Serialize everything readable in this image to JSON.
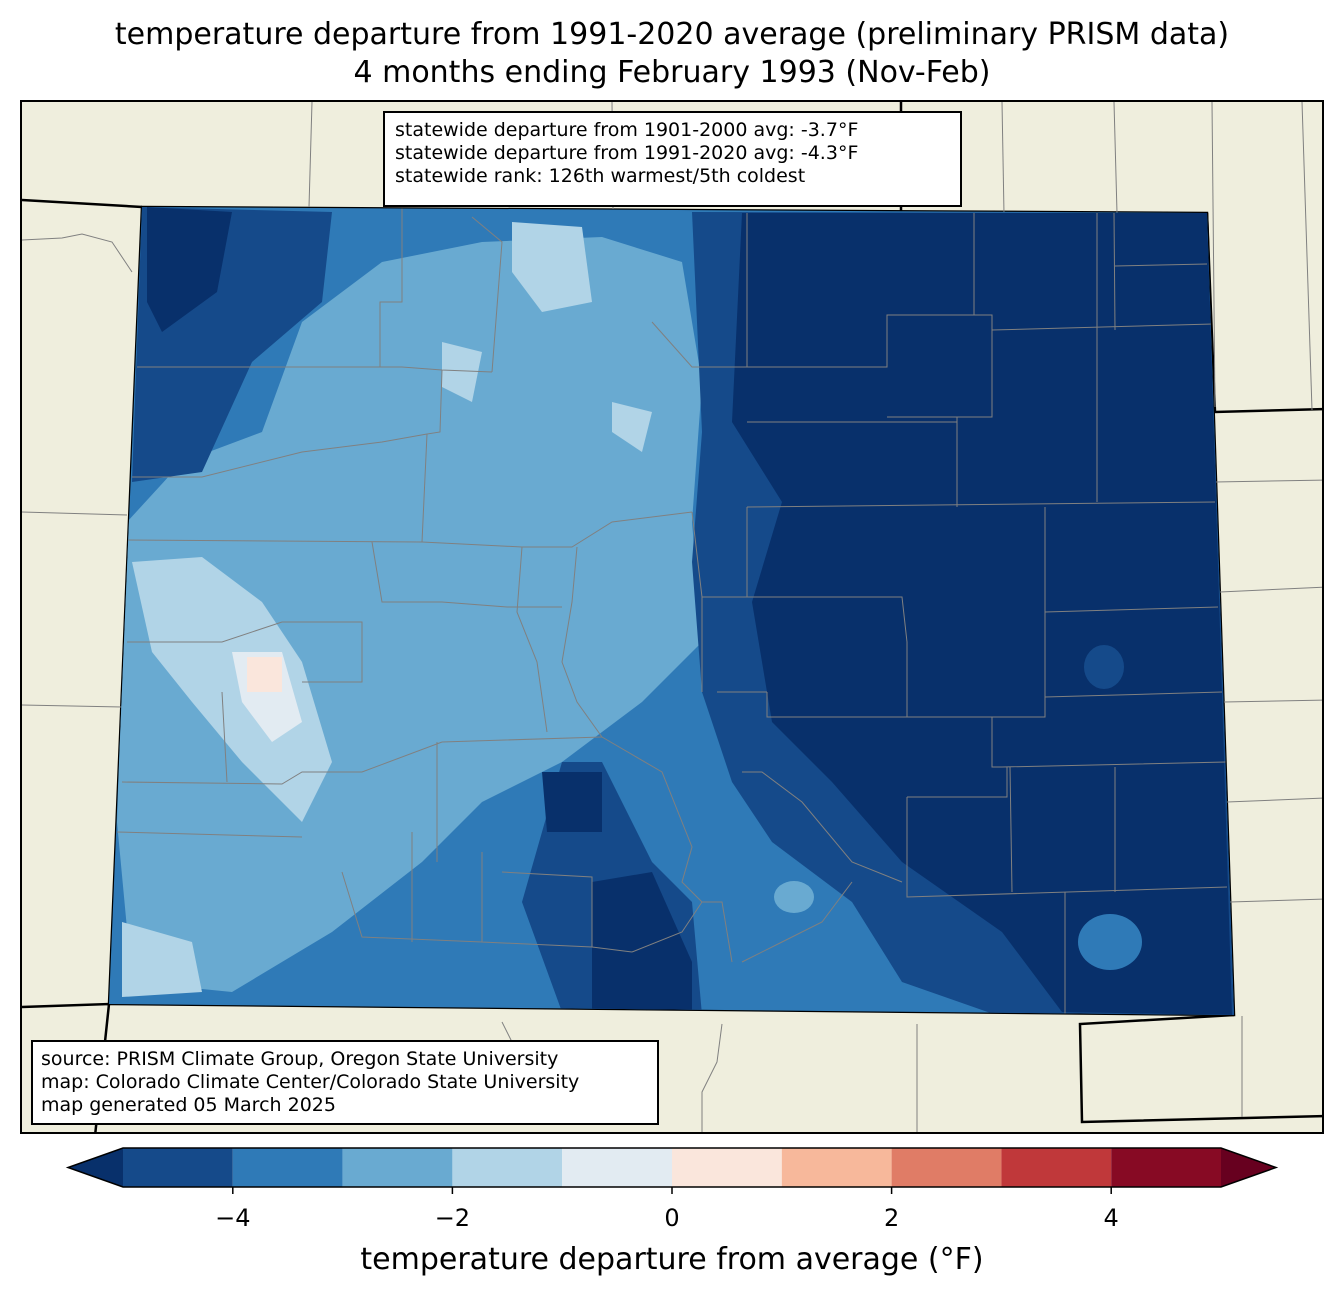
{
  "title": {
    "line1": "temperature departure from 1991-2020 average (preliminary PRISM data)",
    "line2": "4 months ending February 1993 (Nov-Feb)"
  },
  "stats_box": {
    "line1": "statewide departure from 1901-2000 avg: -3.7°F",
    "line2": "statewide departure from 1991-2020 avg: -4.3°F",
    "line3": "statewide rank: 126th warmest/5th coldest"
  },
  "source_box": {
    "line1": "source: PRISM Climate Group, Oregon State University",
    "line2": "map: Colorado Climate Center/Colorado State University",
    "line3": "map generated 05 March 2025"
  },
  "colorbar": {
    "label": "temperature departure from average (°F)",
    "ticks": [
      "−4",
      "−2",
      "0",
      "2",
      "4"
    ],
    "tick_values": [
      -4,
      -2,
      0,
      2,
      4
    ],
    "min": -5,
    "max": 5,
    "bins": [
      -5,
      -4,
      -3,
      -2,
      -1,
      0,
      1,
      2,
      3,
      4,
      5
    ],
    "colors": [
      "#154a8a",
      "#2f7ab7",
      "#69aad1",
      "#b1d4e7",
      "#e2ebf2",
      "#fae6dc",
      "#f7b89b",
      "#e07c66",
      "#c0383a",
      "#870a24"
    ],
    "extend_low_color": "#08306b",
    "extend_high_color": "#67001f"
  },
  "map_colors": {
    "land": "#efeedd",
    "state_border": "#000000",
    "county_border": "#808080"
  }
}
